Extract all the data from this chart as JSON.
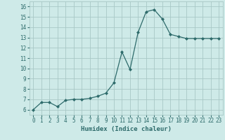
{
  "x": [
    0,
    1,
    2,
    3,
    4,
    5,
    6,
    7,
    8,
    9,
    10,
    11,
    12,
    13,
    14,
    15,
    16,
    17,
    18,
    19,
    20,
    21,
    22,
    23
  ],
  "y": [
    6.0,
    6.7,
    6.7,
    6.3,
    6.9,
    7.0,
    7.0,
    7.1,
    7.3,
    7.6,
    8.6,
    11.6,
    9.9,
    13.5,
    15.5,
    15.7,
    14.8,
    13.3,
    13.1,
    12.9,
    12.9,
    12.9,
    12.9,
    12.9
  ],
  "line_color": "#2e6b6b",
  "marker": "D",
  "marker_size": 2,
  "bg_color": "#ceeae8",
  "grid_color": "#a8c8c6",
  "xlabel": "Humidex (Indice chaleur)",
  "xlim": [
    -0.5,
    23.5
  ],
  "ylim": [
    5.5,
    16.5
  ],
  "yticks": [
    6,
    7,
    8,
    9,
    10,
    11,
    12,
    13,
    14,
    15,
    16
  ],
  "xticks": [
    0,
    1,
    2,
    3,
    4,
    5,
    6,
    7,
    8,
    9,
    10,
    11,
    12,
    13,
    14,
    15,
    16,
    17,
    18,
    19,
    20,
    21,
    22,
    23
  ],
  "tick_color": "#2e6b6b",
  "label_fontsize": 6.5,
  "tick_fontsize": 5.5
}
